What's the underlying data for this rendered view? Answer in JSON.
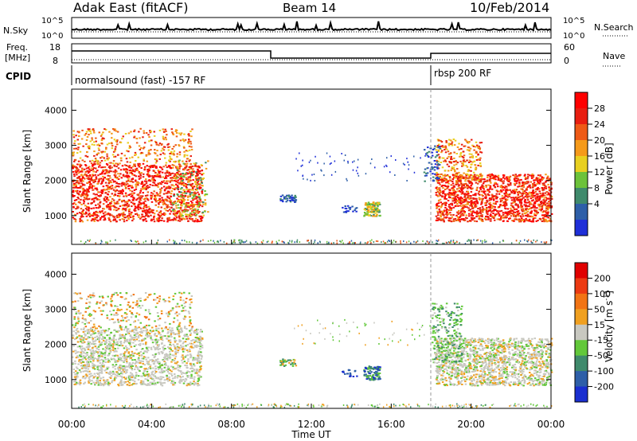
{
  "header": {
    "station": "Adak East (fitACF)",
    "beam": "Beam 14",
    "date": "10/Feb/2014"
  },
  "noise_panel": {
    "left_label": "N.Sky",
    "right_label": "N.Search",
    "tick_top_left": "10^5",
    "tick_bottom_left": "10^0",
    "tick_top_right": "10^5",
    "tick_bottom_right": "10^0"
  },
  "freq_panel": {
    "left_label_1": "Freq.",
    "left_label_2": "[MHz]",
    "right_label": "Nave",
    "tick_top_left": "18",
    "tick_bottom_left": "8",
    "tick_top_right": "60",
    "tick_bottom_right": "0"
  },
  "cpid": {
    "label": "CPID",
    "mode1": "normalsound (fast) -157 RF",
    "mode2": "rbsp 200 RF"
  },
  "chart_data": [
    {
      "type": "heatmap",
      "name": "power",
      "ylabel": "Slant Range [km]",
      "xlabel": "Time UT",
      "x_range_hours": [
        0,
        24
      ],
      "ylim_km": [
        180,
        4600
      ],
      "y_ticks": [
        "1000",
        "2000",
        "3000",
        "4000"
      ],
      "colorbar_label": "Power [dB]",
      "colorbar_ticks": [
        "4",
        "8",
        "12",
        "16",
        "20",
        "24",
        "28"
      ],
      "colors": [
        "#1f2fd8",
        "#2e5fa8",
        "#3f8a6c",
        "#6cc23a",
        "#e8d020",
        "#f59a1a",
        "#ee5a16",
        "#e81e10",
        "#ff0000"
      ]
    },
    {
      "type": "heatmap",
      "name": "velocity",
      "ylabel": "Slant Range [km]",
      "xlabel": "Time UT",
      "x_range_hours": [
        0,
        24
      ],
      "ylim_km": [
        180,
        4600
      ],
      "y_ticks": [
        "1000",
        "2000",
        "3000",
        "4000"
      ],
      "colorbar_label": "Velocity [m s",
      "colorbar_label_sup": "-1",
      "colorbar_ticks": [
        "200",
        "100",
        "50",
        "15",
        "-15",
        "-50",
        "-100",
        "-200"
      ],
      "colors": [
        "#1a2fd0",
        "#2e5fa8",
        "#3f8a6c",
        "#62c83a",
        "#c8c8c0",
        "#f0a020",
        "#f27414",
        "#ec3a12",
        "#e00000"
      ]
    }
  ],
  "x_ticks": [
    "00:00",
    "04:00",
    "08:00",
    "12:00",
    "16:00",
    "20:00",
    "00:00"
  ]
}
